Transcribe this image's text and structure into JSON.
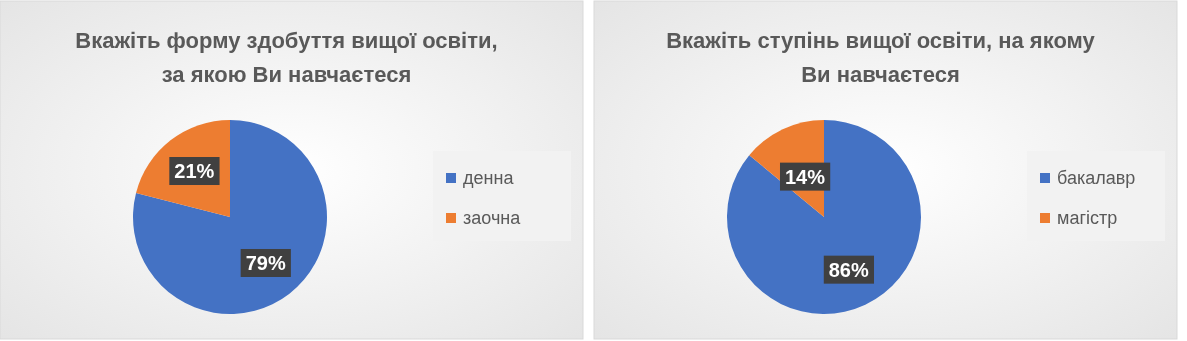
{
  "chart_data": [
    {
      "type": "pie",
      "title": "Вкажіть форму здобуття вищої освіти, за якою Ви навчаєтеся",
      "categories": [
        "денна",
        "заочна"
      ],
      "values": [
        79,
        21
      ],
      "colors": [
        "#4472c4",
        "#ed7d31"
      ],
      "value_labels": [
        "79%",
        "21%"
      ],
      "legend": "right"
    },
    {
      "type": "pie",
      "title": "Вкажіть ступінь вищої освіти, на якому Ви навчаєтеся",
      "categories": [
        "бакалавр",
        "магістр"
      ],
      "values": [
        86,
        14
      ],
      "colors": [
        "#4472c4",
        "#ed7d31"
      ],
      "value_labels": [
        "86%",
        "14%"
      ],
      "legend": "right"
    }
  ]
}
